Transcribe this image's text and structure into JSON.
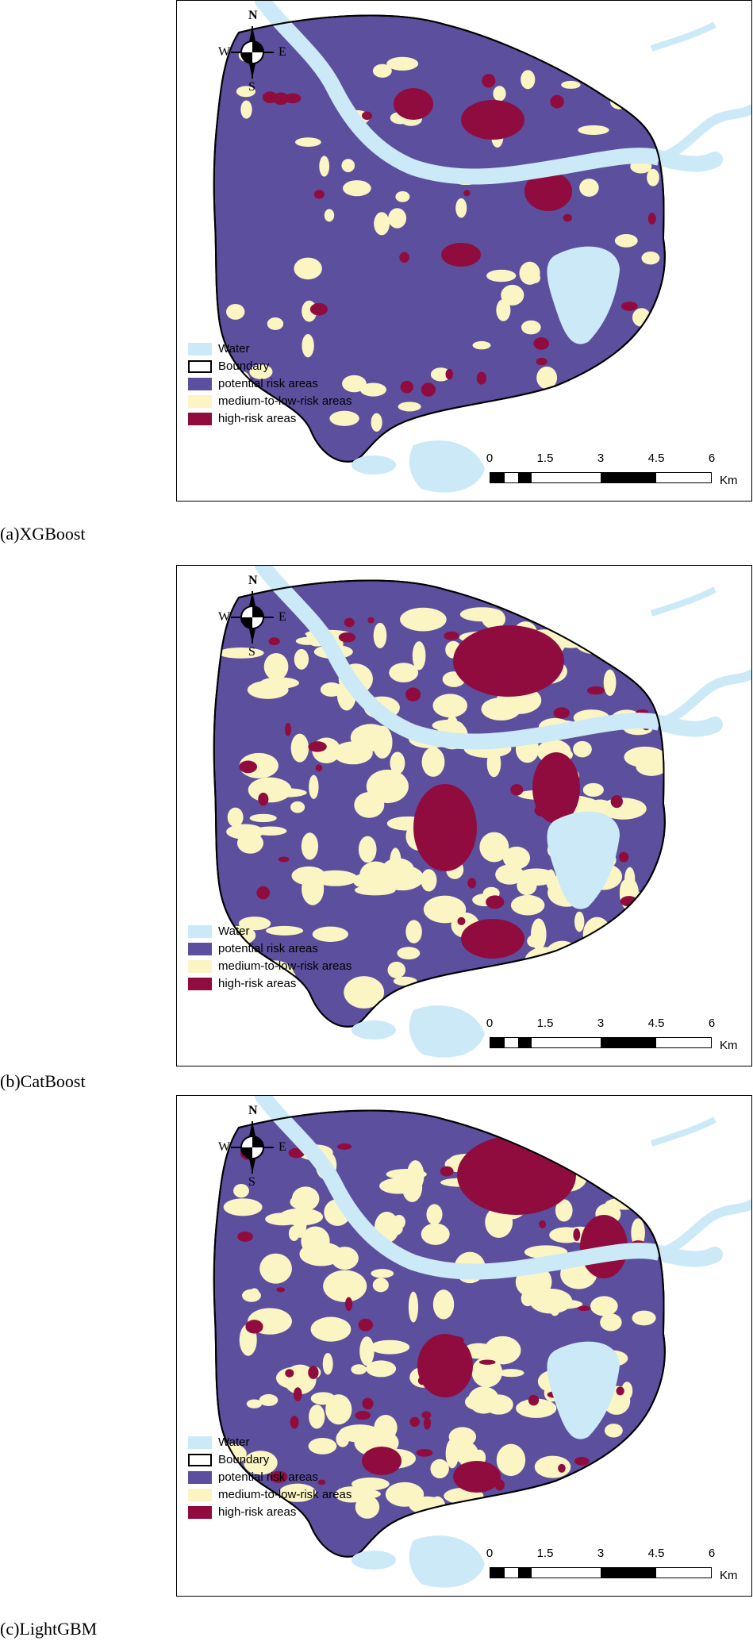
{
  "panels": [
    {
      "caption": "(a)XGBoost",
      "legend": [
        {
          "label": "Water",
          "color": "#cce9f7",
          "kind": "water"
        },
        {
          "label": "Boundary",
          "color": "#ffffff",
          "kind": "boundary"
        },
        {
          "label": "potential risk areas",
          "color": "#5c4f9e",
          "kind": "potential"
        },
        {
          "label": "medium-to-low-risk areas",
          "color": "#fbf5c3",
          "kind": "medium"
        },
        {
          "label": "high-risk areas",
          "color": "#900c3f",
          "kind": "high"
        }
      ]
    },
    {
      "caption": "(b)CatBoost",
      "legend": [
        {
          "label": "Water",
          "color": "#cce9f7",
          "kind": "water"
        },
        {
          "label": "potential risk areas",
          "color": "#5c4f9e",
          "kind": "potential"
        },
        {
          "label": "medium-to-low-risk areas",
          "color": "#fbf5c3",
          "kind": "medium"
        },
        {
          "label": "high-risk areas",
          "color": "#900c3f",
          "kind": "high"
        }
      ]
    },
    {
      "caption": "(c)LightGBM",
      "legend": [
        {
          "label": "Water",
          "color": "#cce9f7",
          "kind": "water"
        },
        {
          "label": "Boundary",
          "color": "#ffffff",
          "kind": "boundary"
        },
        {
          "label": "potential risk areas",
          "color": "#5c4f9e",
          "kind": "potential"
        },
        {
          "label": "medium-to-low-risk areas",
          "color": "#fbf5c3",
          "kind": "medium"
        },
        {
          "label": "high-risk areas",
          "color": "#900c3f",
          "kind": "high"
        }
      ]
    }
  ],
  "compass": {
    "north": "N",
    "south": "S",
    "east": "E",
    "west": "W"
  },
  "scale": {
    "ticks": [
      "0",
      "1.5",
      "3",
      "4.5",
      "6"
    ],
    "unit": "Km"
  },
  "colors": {
    "water": "#cce9f7",
    "potential": "#5c4f9e",
    "medium": "#fbf5c3",
    "high": "#900c3f"
  }
}
